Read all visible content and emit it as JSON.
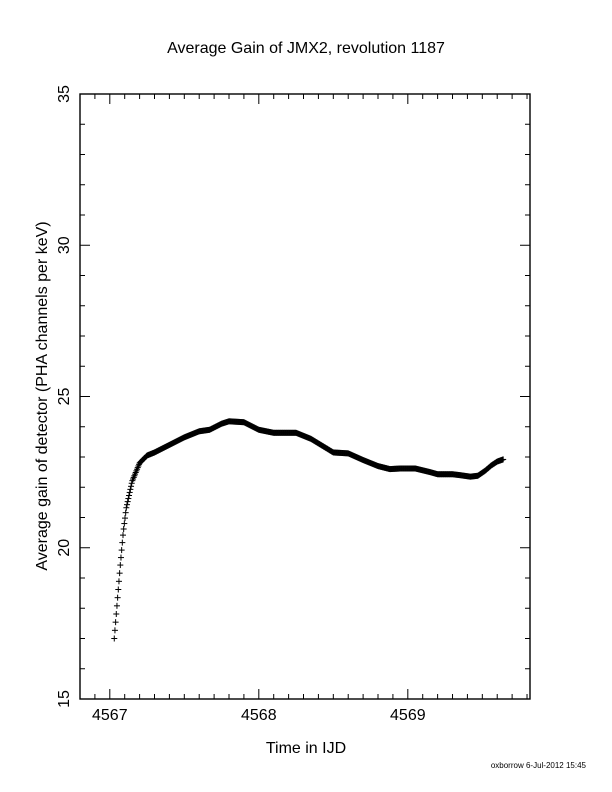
{
  "chart_data": {
    "type": "scatter",
    "title": "Average Gain of JMX2, revolution 1187",
    "xlabel": "Time in IJD",
    "ylabel": "Average gain of detector (PHA channels per keV)",
    "xlim": [
      4566.8,
      4569.82
    ],
    "ylim": [
      15,
      35
    ],
    "xticks": [
      4567,
      4568,
      4569
    ],
    "yticks": [
      15,
      20,
      25,
      30,
      35
    ],
    "grid": false,
    "marker": "plus",
    "curve_points": [
      [
        4567.03,
        17.0
      ],
      [
        4567.05,
        18.2
      ],
      [
        4567.07,
        19.4
      ],
      [
        4567.09,
        20.5
      ],
      [
        4567.11,
        21.3
      ],
      [
        4567.15,
        22.2
      ],
      [
        4567.2,
        22.8
      ],
      [
        4567.25,
        23.05
      ],
      [
        4567.3,
        23.15
      ],
      [
        4567.4,
        23.4
      ],
      [
        4567.5,
        23.65
      ],
      [
        4567.6,
        23.85
      ],
      [
        4567.67,
        23.9
      ],
      [
        4567.75,
        24.1
      ],
      [
        4567.8,
        24.18
      ],
      [
        4567.9,
        24.15
      ],
      [
        4568.0,
        23.9
      ],
      [
        4568.1,
        23.8
      ],
      [
        4568.2,
        23.8
      ],
      [
        4568.25,
        23.8
      ],
      [
        4568.35,
        23.6
      ],
      [
        4568.45,
        23.3
      ],
      [
        4568.5,
        23.15
      ],
      [
        4568.6,
        23.12
      ],
      [
        4568.7,
        22.9
      ],
      [
        4568.8,
        22.7
      ],
      [
        4568.88,
        22.6
      ],
      [
        4568.95,
        22.62
      ],
      [
        4569.05,
        22.62
      ],
      [
        4569.15,
        22.5
      ],
      [
        4569.2,
        22.43
      ],
      [
        4569.3,
        22.43
      ],
      [
        4569.35,
        22.4
      ],
      [
        4569.42,
        22.35
      ],
      [
        4569.47,
        22.38
      ],
      [
        4569.52,
        22.55
      ],
      [
        4569.56,
        22.72
      ],
      [
        4569.6,
        22.85
      ],
      [
        4569.64,
        22.92
      ]
    ]
  },
  "footer": {
    "stamp": "oxborrow  6-Jul-2012 15:45"
  }
}
